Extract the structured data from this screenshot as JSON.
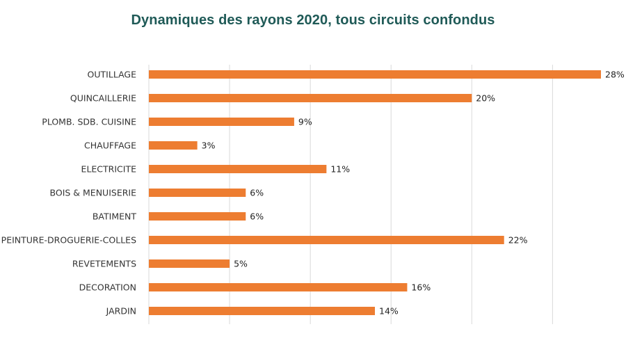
{
  "chart_data": {
    "type": "bar",
    "orientation": "horizontal",
    "title": "Dynamiques des rayons 2020, tous circuits confondus",
    "categories": [
      "OUTILLAGE",
      "QUINCAILLERIE",
      "PLOMB. SDB. CUISINE",
      "CHAUFFAGE",
      "ELECTRICITE",
      "BOIS & MENUISERIE",
      "BATIMENT",
      "PEINTURE-DROGUERIE-COLLES",
      "REVETEMENTS",
      "DECORATION",
      "JARDIN"
    ],
    "values": [
      28,
      20,
      9,
      3,
      11,
      6,
      6,
      22,
      5,
      16,
      14
    ],
    "value_labels": [
      "28%",
      "20%",
      "9%",
      "3%",
      "11%",
      "6%",
      "6%",
      "22%",
      "5%",
      "16%",
      "14%"
    ],
    "xlim": [
      0,
      30
    ],
    "grid": "vertical",
    "bar_color": "#ed7d31",
    "title_color": "#1f5a57"
  }
}
